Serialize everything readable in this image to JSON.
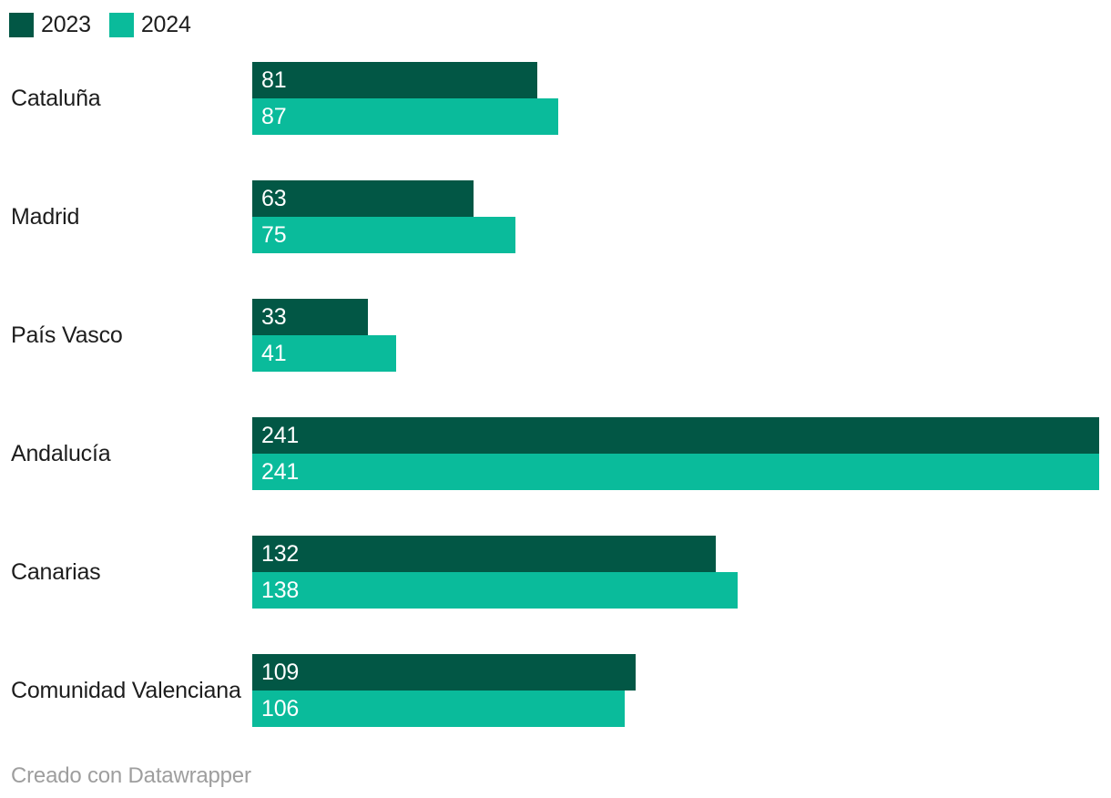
{
  "chart_data": {
    "type": "bar",
    "orientation": "horizontal",
    "categories": [
      "Cataluña",
      "Madrid",
      "País Vasco",
      "Andalucía",
      "Canarias",
      "Comunidad Valenciana"
    ],
    "series": [
      {
        "name": "2023",
        "color": "#025745",
        "values": [
          81,
          63,
          33,
          241,
          132,
          109
        ]
      },
      {
        "name": "2024",
        "color": "#0ABB9B",
        "values": [
          87,
          75,
          41,
          241,
          138,
          106
        ]
      }
    ],
    "xlim": [
      0,
      241
    ],
    "value_labels": "inside-start",
    "legend_position": "top-left",
    "grid": "off",
    "title": "",
    "xlabel": "",
    "ylabel": ""
  },
  "footer": {
    "credit": "Creado con Datawrapper"
  },
  "colors": {
    "background": "#ffffff",
    "label_text": "#1d1d1d",
    "value_text": "#ffffff",
    "credit_text": "#9e9e9e"
  }
}
